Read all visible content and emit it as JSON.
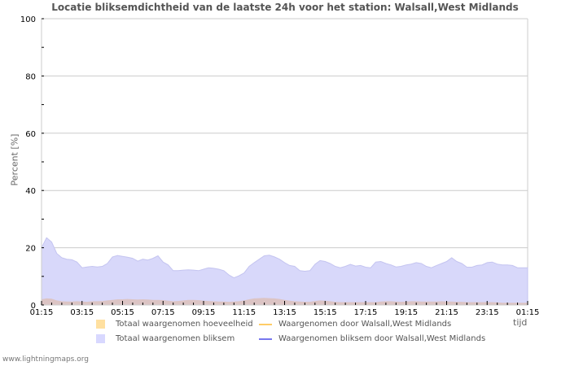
{
  "title": "Locatie bliksemdichtheid van de laatste 24h voor het station: Walsall,West Midlands",
  "y_axis_label": "Percent   [%]",
  "x_axis_label": "tijd",
  "footer": "www.lightningmaps.org",
  "legend": [
    {
      "label": "Totaal waargenomen hoeveelheid",
      "type": "area",
      "color": "#ffe0a0"
    },
    {
      "label": "Waargenomen door Walsall,West Midlands",
      "type": "line",
      "color": "#ffcc66"
    },
    {
      "label": "Totaal waargenomen bliksem",
      "type": "area",
      "color": "#d8d8ff"
    },
    {
      "label": "Waargenomen bliksem door Walsall,West Midlands",
      "type": "line",
      "color": "#7777ee"
    }
  ],
  "colors": {
    "grid": "#cccccc",
    "blue_area": "#d8d8fa",
    "blue_area_edge": "#c4c4f0",
    "brown_area": "#dcc4c4",
    "title": "#555555",
    "axis_text": "#000000"
  },
  "chart_data": {
    "type": "area",
    "title": "Locatie bliksemdichtheid van de laatste 24h voor het station: Walsall,West Midlands",
    "xlabel": "tijd",
    "ylabel": "Percent [%]",
    "ylim": [
      0,
      100
    ],
    "y_ticks": [
      0,
      20,
      40,
      60,
      80,
      100
    ],
    "x_tick_labels": [
      "01:15",
      "03:15",
      "05:15",
      "07:15",
      "09:15",
      "11:15",
      "13:15",
      "15:15",
      "17:15",
      "19:15",
      "21:15",
      "23:15",
      "01:15"
    ],
    "grid": true,
    "legend_position": "bottom",
    "x_hours": [
      0,
      0.25,
      0.5,
      0.75,
      1,
      1.25,
      1.5,
      1.75,
      2,
      2.25,
      2.5,
      2.75,
      3,
      3.25,
      3.5,
      3.75,
      4,
      4.25,
      4.5,
      4.75,
      5,
      5.25,
      5.5,
      5.75,
      6,
      6.25,
      6.5,
      6.75,
      7,
      7.25,
      7.5,
      7.75,
      8,
      8.25,
      8.5,
      8.75,
      9,
      9.25,
      9.5,
      9.75,
      10,
      10.25,
      10.5,
      10.75,
      11,
      11.25,
      11.5,
      11.75,
      12,
      12.25,
      12.5,
      12.75,
      13,
      13.25,
      13.5,
      13.75,
      14,
      14.25,
      14.5,
      14.75,
      15,
      15.25,
      15.5,
      15.75,
      16,
      16.25,
      16.5,
      16.75,
      17,
      17.25,
      17.5,
      17.75,
      18,
      18.25,
      18.5,
      18.75,
      19,
      19.25,
      19.5,
      19.75,
      20,
      20.25,
      20.5,
      20.75,
      21,
      21.25,
      21.5,
      21.75,
      22,
      22.25,
      22.5,
      22.75,
      23,
      23.25,
      23.5,
      23.75,
      24
    ],
    "series": [
      {
        "name": "Totaal waargenomen bliksem",
        "values": [
          20,
          23.5,
          22,
          18,
          16.5,
          16,
          15.8,
          15,
          13,
          13.3,
          13.5,
          13.3,
          13.5,
          14.5,
          16.8,
          17.3,
          17,
          16.7,
          16.3,
          15.3,
          16,
          15.7,
          16.3,
          17.2,
          15,
          14,
          12,
          12,
          12.2,
          12.3,
          12.2,
          12,
          12.5,
          13,
          12.8,
          12.5,
          12,
          10.5,
          9.5,
          10.2,
          11.2,
          13.5,
          14.8,
          16,
          17.2,
          17.4,
          16.8,
          16,
          14.8,
          13.8,
          13.5,
          12,
          11.8,
          12,
          14.2,
          15.5,
          15.2,
          14.5,
          13.5,
          13,
          13.5,
          14.2,
          13.6,
          13.8,
          13.2,
          13,
          15,
          15.2,
          14.5,
          14,
          13.3,
          13.5,
          14,
          14.3,
          14.8,
          14.5,
          13.5,
          13,
          13.8,
          14.5,
          15.2,
          16.5,
          15.2,
          14.5,
          13.2,
          13.2,
          13.8,
          14,
          14.8,
          15,
          14.3,
          14,
          14,
          13.8,
          13,
          13,
          13
        ]
      },
      {
        "name": "Totaal waargenomen hoeveelheid",
        "values": [
          2,
          2.3,
          2.2,
          1.6,
          1.3,
          1.2,
          1.2,
          1.3,
          1.2,
          1.1,
          1.3,
          1.3,
          1.4,
          1.6,
          1.8,
          2,
          2,
          2.1,
          2,
          1.9,
          2,
          1.9,
          1.8,
          1.8,
          1.7,
          1.5,
          1.3,
          1.4,
          1.6,
          1.8,
          1.8,
          1.7,
          1.5,
          1.4,
          1.3,
          1.2,
          1.2,
          1.1,
          1.2,
          1.3,
          1.6,
          2,
          2.3,
          2.4,
          2.5,
          2.4,
          2.3,
          2.1,
          1.8,
          1.5,
          1.3,
          1.2,
          1.1,
          1.1,
          1.4,
          1.6,
          1.5,
          1.3,
          1.1,
          1,
          1,
          1,
          1,
          1,
          1,
          1,
          1,
          1.2,
          1.3,
          1.3,
          1.2,
          1.1,
          1.2,
          1.3,
          1.3,
          1.2,
          1.2,
          1.2,
          1.2,
          1.3,
          1.2,
          1.2,
          1.1,
          1.1,
          1,
          1,
          1,
          1,
          1,
          1,
          0.9,
          0.8,
          0.8,
          0.8,
          0.8,
          0.8,
          0.8
        ]
      },
      {
        "name": "Waargenomen door Walsall,West Midlands",
        "values": []
      },
      {
        "name": "Waargenomen bliksem door Walsall,West Midlands",
        "values": []
      }
    ]
  }
}
